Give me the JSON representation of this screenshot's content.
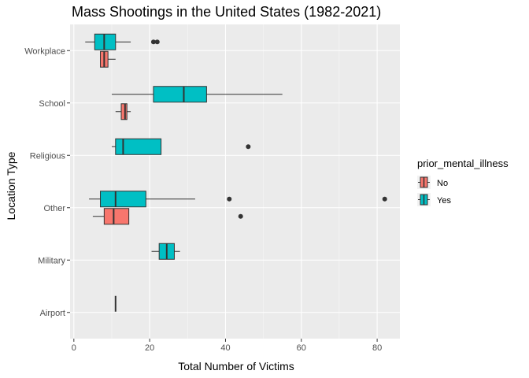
{
  "chart_data": {
    "type": "boxplot",
    "title": "Mass Shootings in the United States (1982-2021)",
    "xlabel": "Total Number of Victims",
    "ylabel": "Location Type",
    "xlim": [
      -1,
      86
    ],
    "x_ticks": [
      0,
      20,
      40,
      60,
      80
    ],
    "categories": [
      "Workplace",
      "School",
      "Religious",
      "Other",
      "Military",
      "Airport"
    ],
    "grid": true,
    "legend": {
      "title": "prior_mental_illness",
      "placement": "right",
      "entries": [
        {
          "label": "No",
          "color": "#F8766D"
        },
        {
          "label": "Yes",
          "color": "#00BFC4"
        }
      ]
    },
    "boxes": [
      {
        "category": "Workplace",
        "group": "Yes",
        "whisker_low": 3,
        "q1": 5.5,
        "median": 8,
        "q3": 11,
        "whisker_high": 15,
        "outliers": [
          21,
          22
        ]
      },
      {
        "category": "Workplace",
        "group": "No",
        "whisker_low": 7,
        "q1": 7,
        "median": 8,
        "q3": 9,
        "whisker_high": 11,
        "outliers": []
      },
      {
        "category": "School",
        "group": "Yes",
        "whisker_low": 10,
        "q1": 21,
        "median": 29,
        "q3": 35,
        "whisker_high": 55,
        "outliers": []
      },
      {
        "category": "School",
        "group": "No",
        "whisker_low": 11,
        "q1": 12.5,
        "median": 13.5,
        "q3": 14,
        "whisker_high": 15,
        "outliers": []
      },
      {
        "category": "Religious",
        "group": "Yes",
        "whisker_low": 10,
        "q1": 11,
        "median": 13,
        "q3": 23,
        "whisker_high": 23,
        "outliers": [
          46
        ]
      },
      {
        "category": "Other",
        "group": "Yes",
        "whisker_low": 4,
        "q1": 7,
        "median": 11,
        "q3": 19,
        "whisker_high": 32,
        "outliers": [
          41,
          82
        ]
      },
      {
        "category": "Other",
        "group": "No",
        "whisker_low": 5,
        "q1": 8,
        "median": 10.5,
        "q3": 14.5,
        "whisker_high": 14.5,
        "outliers": [
          44
        ]
      },
      {
        "category": "Military",
        "group": "Yes",
        "whisker_low": 20.5,
        "q1": 22.5,
        "median": 24.5,
        "q3": 26.5,
        "whisker_high": 28,
        "outliers": []
      },
      {
        "category": "Airport",
        "group": "Yes",
        "whisker_low": 11,
        "q1": 11,
        "median": 11,
        "q3": 11,
        "whisker_high": 11,
        "outliers": []
      }
    ]
  }
}
